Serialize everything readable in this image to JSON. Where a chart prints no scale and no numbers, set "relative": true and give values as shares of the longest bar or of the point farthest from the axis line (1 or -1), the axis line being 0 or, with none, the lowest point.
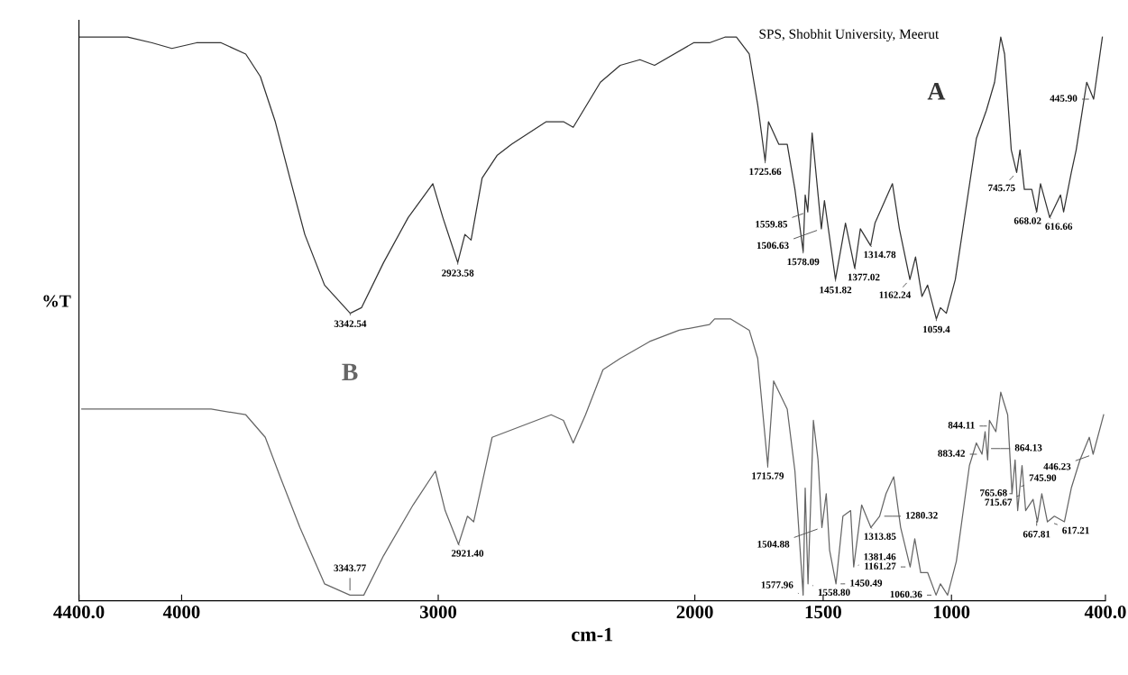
{
  "chart_data": {
    "type": "line",
    "relative": true,
    "xlabel": "cm-1",
    "ylabel": "%T",
    "xlim": [
      4400,
      400
    ],
    "xticks": [
      {
        "value": 4400,
        "label": "4400.0"
      },
      4000,
      3000,
      2000,
      1500,
      1000,
      {
        "value": 400,
        "label": "400.0"
      }
    ],
    "grid": false,
    "legend": false,
    "marker": "none",
    "line_style": "solid",
    "series": [
      {
        "name": "A",
        "color": "#333333",
        "x": [
          4400,
          4210,
          4115,
          4038,
          3942,
          3846,
          3750,
          3693,
          3635,
          3578,
          3520,
          3443,
          3343,
          3299,
          3213,
          3117,
          3021,
          2982,
          2924,
          2896,
          2872,
          2829,
          2771,
          2714,
          2579,
          2512,
          2474,
          2368,
          2291,
          2214,
          2157,
          2005,
          1943,
          1883,
          1838,
          1788,
          1755,
          1726,
          1713,
          1673,
          1640,
          1610,
          1578,
          1570,
          1560,
          1543,
          1507,
          1495,
          1452,
          1413,
          1377,
          1355,
          1315,
          1298,
          1230,
          1203,
          1162,
          1140,
          1115,
          1093,
          1059,
          1043,
          1020,
          985,
          903,
          864,
          832,
          808,
          793,
          767,
          746,
          733,
          716,
          687,
          668,
          653,
          617,
          575,
          563,
          533,
          514,
          490,
          473,
          446,
          412
        ],
        "values": [
          1.0,
          1.0,
          0.99,
          0.98,
          0.99,
          0.99,
          0.97,
          0.93,
          0.85,
          0.75,
          0.65,
          0.56,
          0.51,
          0.52,
          0.6,
          0.68,
          0.74,
          0.68,
          0.6,
          0.65,
          0.64,
          0.75,
          0.79,
          0.81,
          0.85,
          0.85,
          0.84,
          0.92,
          0.95,
          0.96,
          0.95,
          0.99,
          0.99,
          1.0,
          1.0,
          0.97,
          0.88,
          0.78,
          0.85,
          0.81,
          0.81,
          0.73,
          0.62,
          0.72,
          0.69,
          0.83,
          0.66,
          0.71,
          0.57,
          0.67,
          0.59,
          0.66,
          0.63,
          0.67,
          0.74,
          0.66,
          0.57,
          0.61,
          0.54,
          0.56,
          0.5,
          0.52,
          0.51,
          0.57,
          0.82,
          0.87,
          0.92,
          1.0,
          0.97,
          0.8,
          0.76,
          0.8,
          0.73,
          0.73,
          0.69,
          0.74,
          0.68,
          0.72,
          0.69,
          0.76,
          0.8,
          0.87,
          0.92,
          0.89,
          1.0
        ]
      },
      {
        "name": "B",
        "color": "#666666",
        "x": [
          4389,
          4154,
          4019,
          3885,
          3750,
          3674,
          3616,
          3539,
          3443,
          3344,
          3290,
          3213,
          3098,
          3011,
          2973,
          2921,
          2886,
          2862,
          2790,
          2675,
          2560,
          2512,
          2474,
          2426,
          2358,
          2291,
          2176,
          2061,
          1943,
          1923,
          1860,
          1788,
          1755,
          1716,
          1693,
          1640,
          1610,
          1578,
          1570,
          1559,
          1538,
          1520,
          1505,
          1488,
          1475,
          1450,
          1423,
          1393,
          1381,
          1350,
          1314,
          1280,
          1255,
          1225,
          1198,
          1161,
          1143,
          1120,
          1093,
          1060,
          1043,
          1015,
          981,
          930,
          903,
          881,
          869,
          859,
          852,
          827,
          808,
          781,
          764,
          752,
          742,
          725,
          711,
          682,
          665,
          648,
          626,
          599,
          560,
          533,
          499,
          463,
          448,
          407
        ],
        "values": [
          0.34,
          0.34,
          0.34,
          0.34,
          0.33,
          0.29,
          0.22,
          0.13,
          0.03,
          0.01,
          0.01,
          0.08,
          0.17,
          0.23,
          0.16,
          0.1,
          0.15,
          0.14,
          0.29,
          0.31,
          0.33,
          0.32,
          0.28,
          0.33,
          0.41,
          0.43,
          0.46,
          0.48,
          0.49,
          0.5,
          0.5,
          0.48,
          0.43,
          0.24,
          0.39,
          0.34,
          0.23,
          0.01,
          0.2,
          0.03,
          0.32,
          0.25,
          0.13,
          0.19,
          0.09,
          0.03,
          0.15,
          0.16,
          0.06,
          0.17,
          0.13,
          0.15,
          0.19,
          0.22,
          0.13,
          0.06,
          0.11,
          0.05,
          0.05,
          0.01,
          0.03,
          0.01,
          0.07,
          0.24,
          0.28,
          0.26,
          0.3,
          0.25,
          0.32,
          0.3,
          0.37,
          0.33,
          0.19,
          0.25,
          0.16,
          0.24,
          0.16,
          0.18,
          0.14,
          0.19,
          0.14,
          0.15,
          0.14,
          0.2,
          0.25,
          0.29,
          0.26,
          0.33
        ]
      }
    ],
    "annotations": [
      "SPS, Shobhit University, Meerut",
      {
        "text": "3342.54",
        "x": 3343,
        "y": 0.51
      },
      {
        "text": "2923.58",
        "x": 2924,
        "y": 0.6
      },
      {
        "text": "1725.66",
        "x": 1726,
        "y": 0.78
      },
      {
        "text": "1559.85",
        "x": 1560,
        "y": 0.69
      },
      {
        "text": "1506.63",
        "x": 1507,
        "y": 0.66
      },
      {
        "text": "1578.09",
        "x": 1578,
        "y": 0.62
      },
      {
        "text": "1451.82",
        "x": 1452,
        "y": 0.57
      },
      {
        "text": "1377.02",
        "x": 1377,
        "y": 0.59
      },
      {
        "text": "1314.78",
        "x": 1315,
        "y": 0.63
      },
      {
        "text": "1162.24",
        "x": 1162,
        "y": 0.57
      },
      {
        "text": "1059.4",
        "x": 1059,
        "y": 0.5
      },
      {
        "text": "745.75",
        "x": 746,
        "y": 0.76
      },
      {
        "text": "668.02",
        "x": 668,
        "y": 0.69
      },
      {
        "text": "616.66",
        "x": 617,
        "y": 0.68
      },
      {
        "text": "445.90",
        "x": 446,
        "y": 0.89
      },
      {
        "text": "3343.77",
        "x": 3344,
        "y": 0.01
      },
      {
        "text": "2921.40",
        "x": 2921,
        "y": 0.1
      },
      {
        "text": "1715.79",
        "x": 1716,
        "y": 0.24
      },
      {
        "text": "1577.96",
        "x": 1578,
        "y": 0.01
      },
      {
        "text": "1558.80",
        "x": 1559,
        "y": 0.03
      },
      {
        "text": "1504.88",
        "x": 1505,
        "y": 0.13
      },
      {
        "text": "1450.49",
        "x": 1450,
        "y": 0.03
      },
      {
        "text": "1381.46",
        "x": 1381,
        "y": 0.06
      },
      {
        "text": "1313.85",
        "x": 1314,
        "y": 0.13
      },
      {
        "text": "1280.32",
        "x": 1280,
        "y": 0.15
      },
      {
        "text": "1161.27",
        "x": 1161,
        "y": 0.06
      },
      {
        "text": "1060.36",
        "x": 1060,
        "y": 0.01
      },
      {
        "text": "883.42",
        "x": 883,
        "y": 0.26
      },
      {
        "text": "864.13",
        "x": 864,
        "y": 0.27
      },
      {
        "text": "844.11",
        "x": 844,
        "y": 0.31
      },
      {
        "text": "765.68",
        "x": 766,
        "y": 0.19
      },
      {
        "text": "745.90",
        "x": 746,
        "y": 0.2
      },
      {
        "text": "715.67",
        "x": 716,
        "y": 0.19
      },
      {
        "text": "667.81",
        "x": 668,
        "y": 0.15
      },
      {
        "text": "617.21",
        "x": 617,
        "y": 0.14
      },
      {
        "text": "446.23",
        "x": 446,
        "y": 0.26
      }
    ]
  }
}
